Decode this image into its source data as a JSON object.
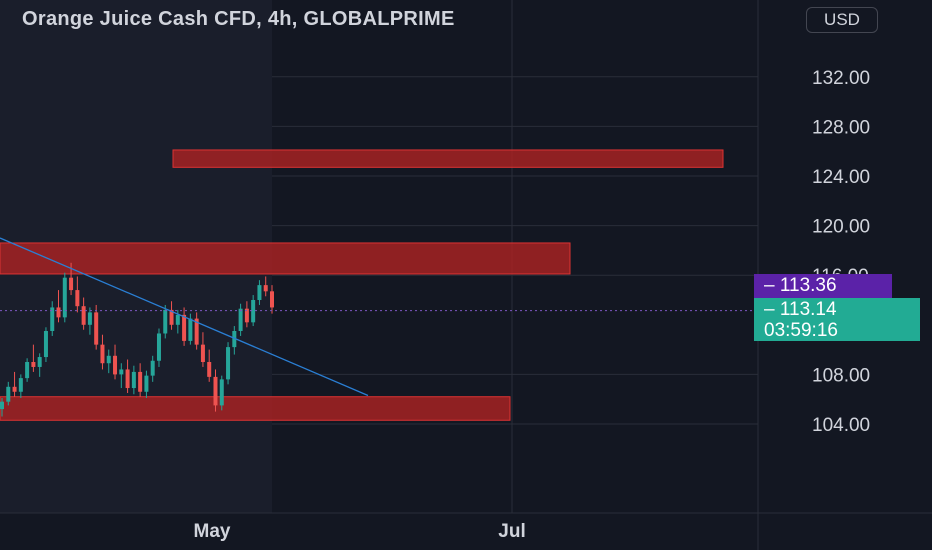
{
  "chart_data": {
    "type": "candlestick",
    "title": "Orange Juice Cash CFD, 4h, GLOBALPRIME",
    "currency": "USD",
    "y_ticks": [
      "104.00",
      "108.00",
      "116.00",
      "120.00",
      "124.00",
      "128.00",
      "132.00"
    ],
    "x_ticks": [
      "May",
      "Jul"
    ],
    "ylim": [
      97,
      136
    ],
    "series": [
      {
        "values": [
          [
            105.2,
            106.1,
            104.6,
            105.8
          ],
          [
            105.8,
            107.4,
            105.5,
            107.0
          ],
          [
            107.0,
            108.2,
            106.2,
            106.6
          ],
          [
            106.6,
            108.0,
            106.1,
            107.7
          ],
          [
            107.7,
            109.3,
            107.4,
            109.0
          ],
          [
            109.0,
            110.4,
            108.2,
            108.6
          ],
          [
            108.6,
            109.7,
            107.8,
            109.4
          ],
          [
            109.4,
            111.8,
            109.0,
            111.5
          ],
          [
            111.5,
            113.9,
            111.1,
            113.4
          ],
          [
            113.4,
            114.8,
            112.2,
            112.6
          ],
          [
            112.6,
            116.2,
            112.2,
            115.8
          ],
          [
            115.8,
            117.0,
            114.4,
            114.8
          ],
          [
            114.8,
            115.9,
            113.0,
            113.5
          ],
          [
            113.5,
            114.2,
            111.6,
            112.0
          ],
          [
            112.0,
            113.4,
            111.2,
            113.0
          ],
          [
            113.0,
            113.6,
            110.0,
            110.4
          ],
          [
            110.4,
            111.2,
            108.4,
            108.9
          ],
          [
            108.9,
            110.0,
            108.1,
            109.5
          ],
          [
            109.5,
            110.4,
            107.6,
            108.0
          ],
          [
            108.0,
            108.9,
            106.9,
            108.4
          ],
          [
            108.4,
            109.2,
            106.5,
            106.9
          ],
          [
            106.9,
            108.7,
            106.4,
            108.2
          ],
          [
            108.2,
            108.9,
            106.2,
            106.6
          ],
          [
            106.6,
            108.3,
            106.1,
            107.9
          ],
          [
            107.9,
            109.5,
            107.4,
            109.1
          ],
          [
            109.1,
            111.7,
            108.6,
            111.3
          ],
          [
            111.3,
            113.6,
            110.9,
            113.2
          ],
          [
            113.2,
            113.9,
            111.6,
            112.0
          ],
          [
            112.0,
            113.2,
            111.3,
            112.8
          ],
          [
            112.8,
            113.4,
            110.3,
            110.7
          ],
          [
            110.7,
            112.9,
            110.4,
            112.5
          ],
          [
            112.5,
            113.0,
            110.0,
            110.4
          ],
          [
            110.4,
            111.4,
            108.6,
            109.0
          ],
          [
            109.0,
            110.0,
            107.4,
            107.8
          ],
          [
            107.8,
            108.4,
            105.0,
            105.5
          ],
          [
            105.5,
            107.9,
            105.1,
            107.6
          ],
          [
            107.6,
            110.6,
            107.2,
            110.2
          ],
          [
            110.2,
            111.9,
            109.6,
            111.5
          ],
          [
            111.5,
            113.7,
            111.1,
            113.3
          ],
          [
            113.3,
            113.9,
            111.8,
            112.2
          ],
          [
            112.2,
            114.4,
            111.9,
            114.0
          ],
          [
            114.0,
            115.6,
            113.6,
            115.2
          ],
          [
            115.2,
            115.9,
            114.3,
            114.7
          ],
          [
            114.7,
            115.2,
            112.9,
            113.4
          ]
        ]
      }
    ],
    "levels": [
      {
        "price": 113.36,
        "label": "113.36",
        "color": "#5b22a8"
      },
      {
        "price": 113.14,
        "label": "113.14",
        "countdown": "03:59:16",
        "color": "#22ab94"
      }
    ],
    "zones": [
      {
        "low": 124.7,
        "high": 126.1,
        "color": "#b22222"
      },
      {
        "low": 116.1,
        "high": 118.6,
        "color": "#b22222"
      },
      {
        "low": 104.3,
        "high": 106.2,
        "color": "#b22222"
      }
    ],
    "trendline": {
      "from": 119.0,
      "to": 106.3,
      "color": "#2a7fd4"
    },
    "colors": {
      "background": "#131722",
      "up": "#26a69a",
      "down": "#ef5350",
      "grid": "#2a2e39",
      "text": "#d1d4dc"
    },
    "grid": true
  }
}
